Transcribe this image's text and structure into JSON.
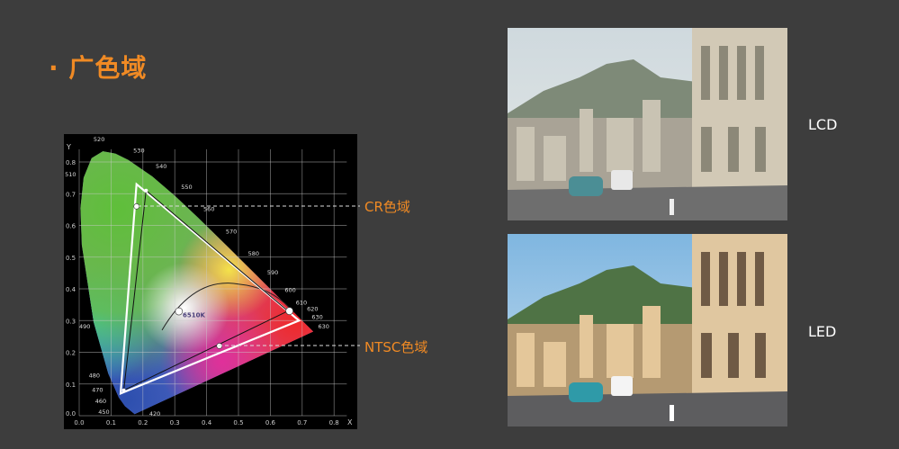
{
  "slide": {
    "title": "· 广色域",
    "cr_label": "CR色域",
    "ntsc_label": "NTSC色域",
    "lcd_label": "LCD",
    "led_label": "LED",
    "accent_color": "#f08a24"
  },
  "chromaticity_diagram": {
    "x_axis_label": "X",
    "y_axis_label": "Y",
    "x_ticks": [
      "0.0",
      "0.1",
      "0.2",
      "0.3",
      "0.4",
      "0.5",
      "0.6",
      "0.7",
      "0.8"
    ],
    "y_ticks": [
      "0.0",
      "0.1",
      "0.2",
      "0.3",
      "0.4",
      "0.5",
      "0.6",
      "0.7",
      "0.8"
    ],
    "white_point_label": "6510K",
    "wavelength_labels": [
      "420",
      "450",
      "460",
      "470",
      "480",
      "490",
      "510",
      "520",
      "530",
      "540",
      "550",
      "560",
      "570",
      "580",
      "590",
      "600",
      "610",
      "620",
      "630",
      "630"
    ],
    "cr_gamut": [
      [
        0.18,
        0.73
      ],
      [
        0.69,
        0.3
      ],
      [
        0.13,
        0.07
      ]
    ],
    "ntsc_gamut": [
      [
        0.21,
        0.71
      ],
      [
        0.655,
        0.33
      ],
      [
        0.14,
        0.08
      ]
    ],
    "markers": [
      [
        0.18,
        0.66
      ],
      [
        0.313,
        0.329
      ],
      [
        0.66,
        0.33
      ],
      [
        0.44,
        0.22
      ]
    ]
  },
  "photos": [
    {
      "label": "LCD",
      "description_tone": "muted"
    },
    {
      "label": "LED",
      "description_tone": "vivid"
    }
  ]
}
